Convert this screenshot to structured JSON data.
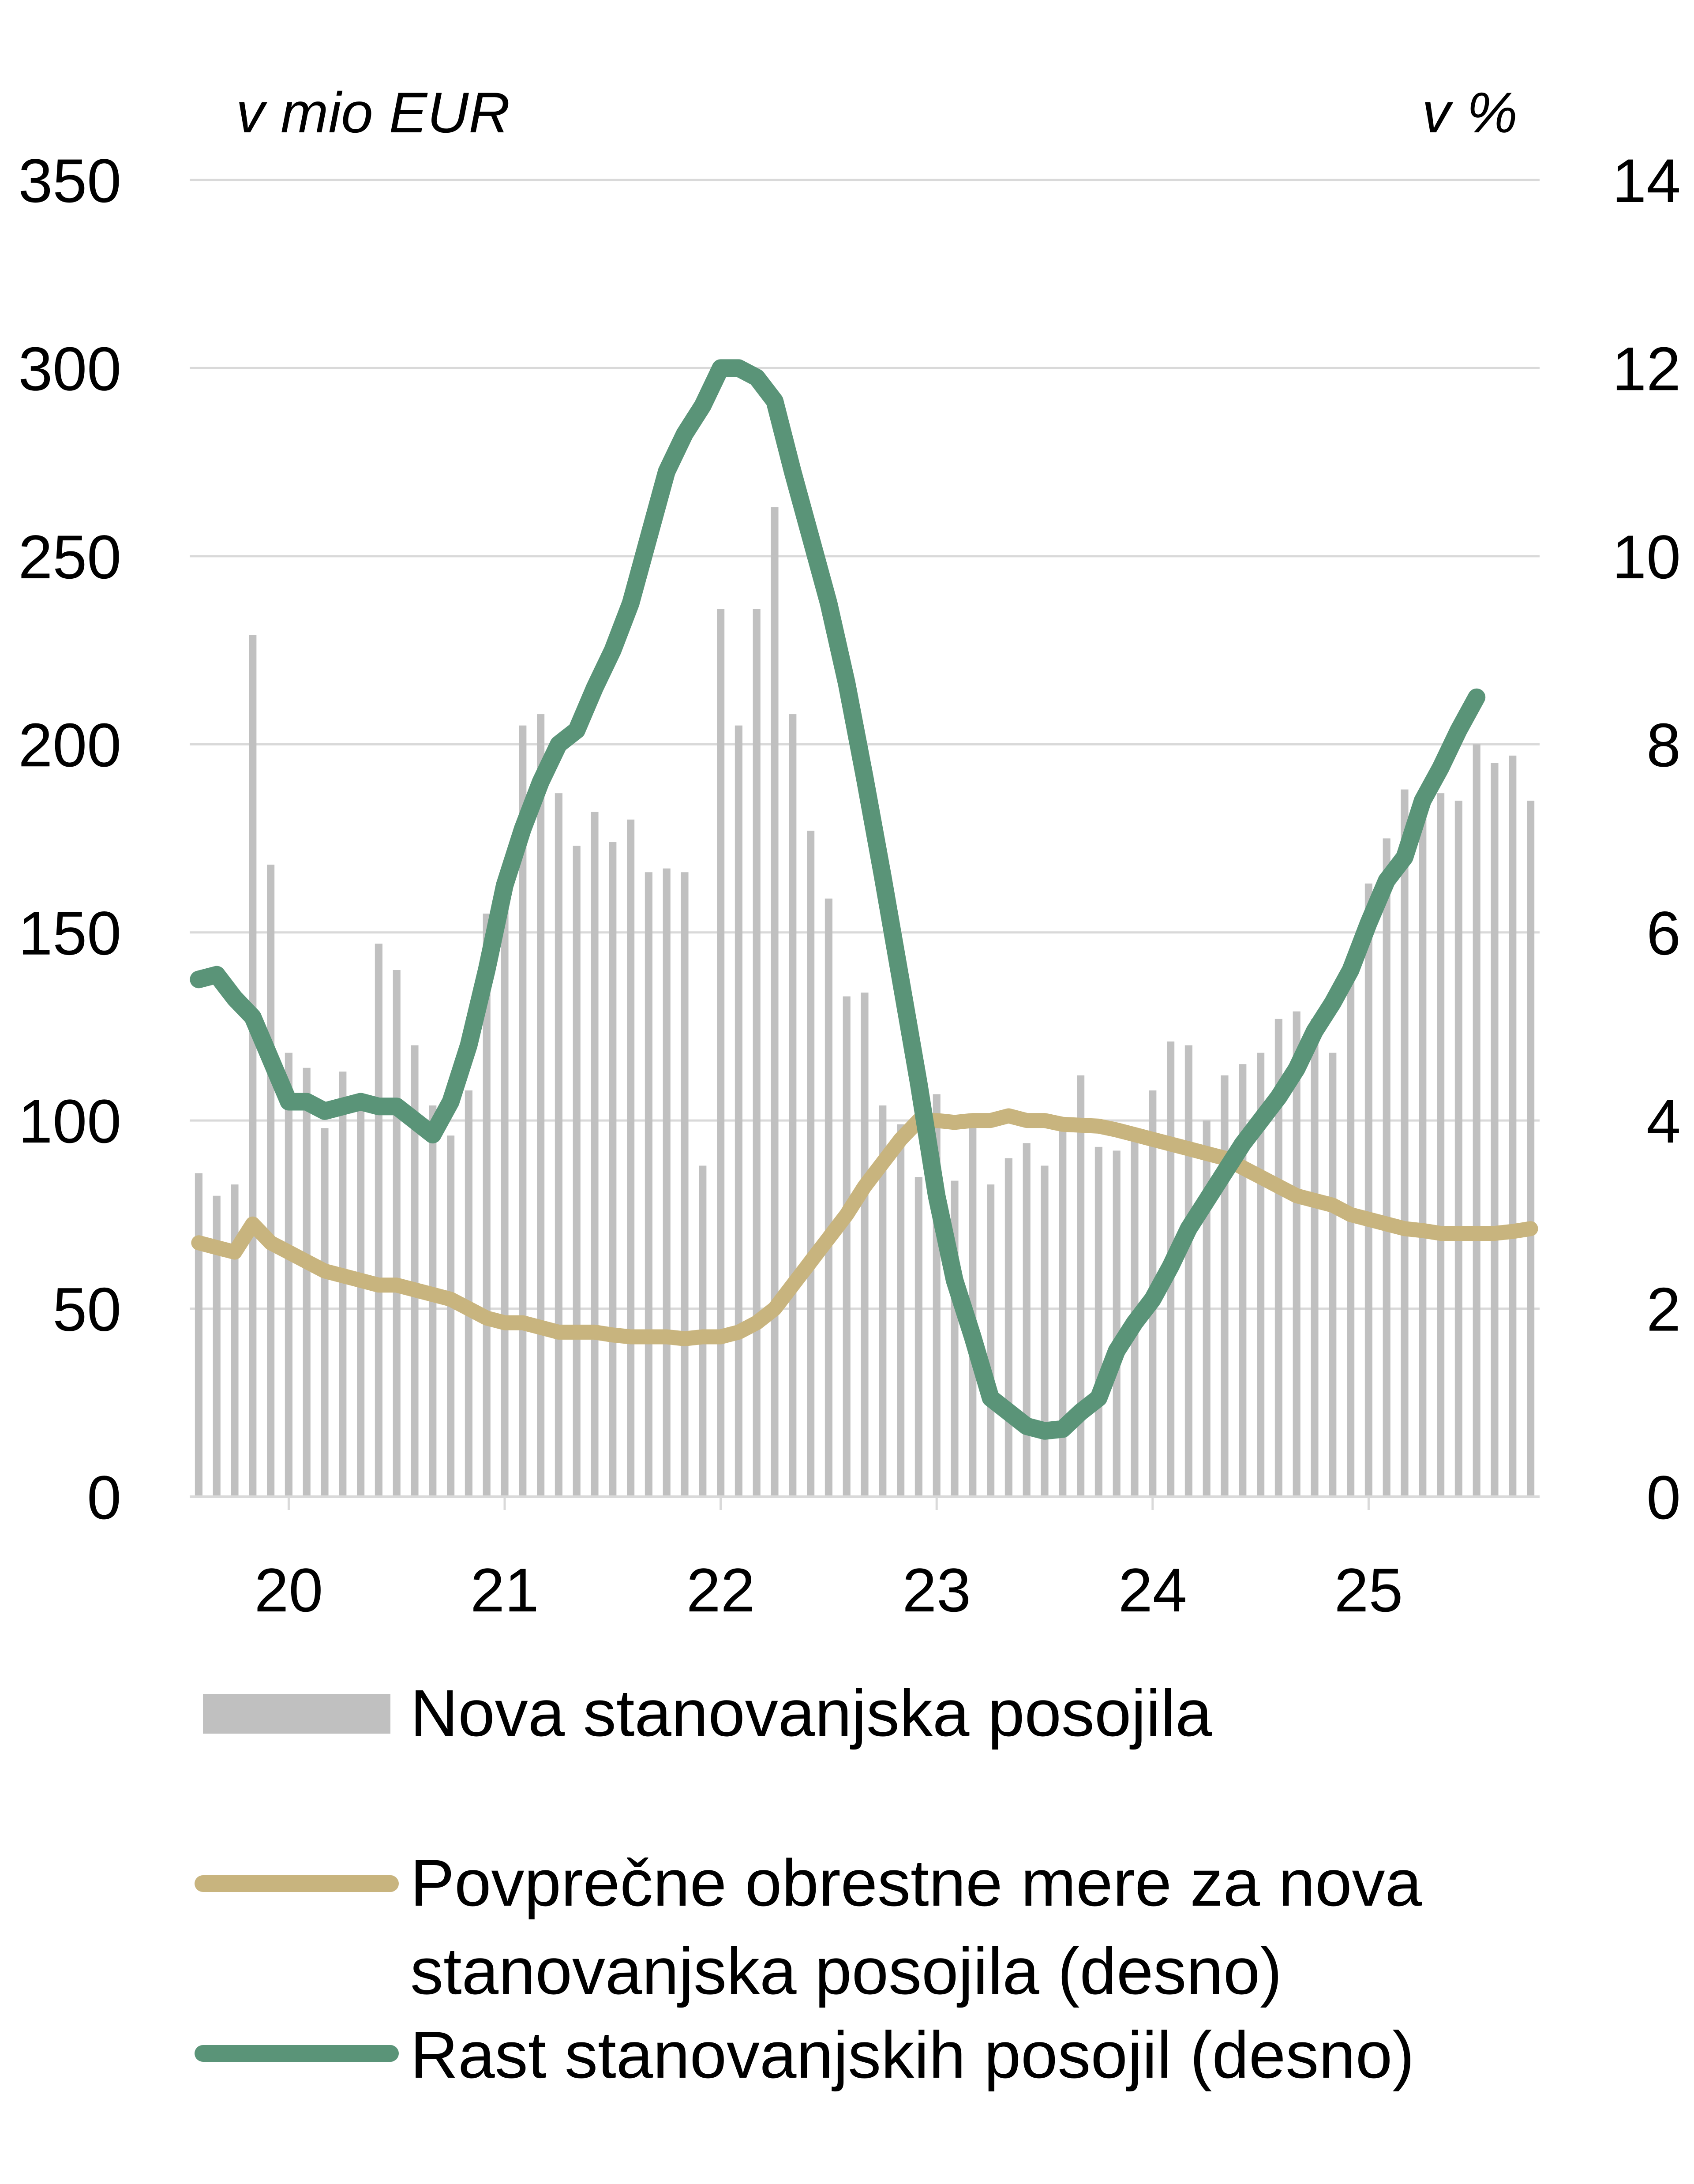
{
  "chart_data": {
    "type": "bar+line",
    "title": "",
    "left_axis": {
      "unit_label": "v mio EUR",
      "ylim": [
        0,
        350
      ],
      "ticks": [
        0,
        50,
        100,
        150,
        200,
        250,
        300,
        350
      ]
    },
    "right_axis": {
      "unit_label": "v %",
      "ylim": [
        0,
        14
      ],
      "ticks": [
        0,
        2,
        4,
        6,
        8,
        10,
        12,
        14
      ]
    },
    "x_axis": {
      "tick_labels": [
        "20",
        "21",
        "22",
        "23",
        "24",
        "25"
      ],
      "tick_index": [
        5,
        17,
        29,
        41,
        53,
        65
      ]
    },
    "grid": "horizontal",
    "colors": {
      "bars": "#c0c0c0",
      "rate_line": "#c8b47e",
      "growth_line": "#5a9478",
      "gridline": "#d9d9d9"
    },
    "series": [
      {
        "name": "Nova stanovanjska posojila",
        "type": "bar",
        "axis": "left",
        "values": [
          86,
          80,
          83,
          229,
          168,
          118,
          114,
          98,
          113,
          106,
          147,
          140,
          120,
          104,
          96,
          108,
          155,
          160,
          205,
          208,
          187,
          173,
          182,
          174,
          180,
          166,
          167,
          166,
          88,
          236,
          205,
          236,
          263,
          208,
          177,
          159,
          133,
          134,
          104,
          99,
          85,
          107,
          84,
          100,
          83,
          90,
          94,
          88,
          100,
          112,
          93,
          92,
          98,
          108,
          121,
          120,
          100,
          112,
          115,
          118,
          127,
          129,
          127,
          118,
          140,
          163,
          175,
          188,
          184,
          187,
          185,
          200,
          195,
          197,
          185
        ]
      },
      {
        "name": "Povprečne obrestne mere za nova stanovanjska posojila (desno)",
        "type": "line",
        "axis": "right",
        "values": [
          2.7,
          2.65,
          2.6,
          2.9,
          2.7,
          2.6,
          2.5,
          2.4,
          2.35,
          2.3,
          2.25,
          2.25,
          2.2,
          2.15,
          2.1,
          2.0,
          1.9,
          1.85,
          1.85,
          1.8,
          1.75,
          1.75,
          1.75,
          1.72,
          1.7,
          1.7,
          1.7,
          1.68,
          1.7,
          1.7,
          1.75,
          1.85,
          2.0,
          2.25,
          2.5,
          2.75,
          3.0,
          3.3,
          3.55,
          3.8,
          4.0,
          4.0,
          3.98,
          4.0,
          4.0,
          4.05,
          4.0,
          4.0,
          3.96,
          3.95,
          3.94,
          3.9,
          3.85,
          3.8,
          3.75,
          3.7,
          3.65,
          3.6,
          3.5,
          3.4,
          3.3,
          3.2,
          3.15,
          3.1,
          3.0,
          2.95,
          2.9,
          2.85,
          2.83,
          2.8,
          2.8,
          2.8,
          2.8,
          2.82,
          2.85
        ]
      },
      {
        "name": "Rast stanovanjskih posojil (desno)",
        "type": "line",
        "axis": "right",
        "values": [
          5.5,
          5.55,
          5.3,
          5.1,
          4.65,
          4.2,
          4.2,
          4.1,
          4.15,
          4.2,
          4.15,
          4.15,
          4.0,
          3.85,
          4.2,
          4.8,
          5.6,
          6.5,
          7.1,
          7.6,
          8.0,
          8.15,
          8.6,
          9.0,
          9.5,
          10.2,
          10.9,
          11.3,
          11.6,
          12.0,
          12.0,
          11.9,
          11.65,
          10.9,
          10.2,
          9.5,
          8.65,
          7.65,
          6.6,
          5.5,
          4.4,
          3.2,
          2.3,
          1.7,
          1.05,
          0.9,
          0.75,
          0.7,
          0.72,
          0.9,
          1.05,
          1.55,
          1.85,
          2.1,
          2.45,
          2.85,
          3.15,
          3.45,
          3.75,
          4.0,
          4.25,
          4.55,
          4.95,
          5.25,
          5.6,
          6.1,
          6.55,
          6.8,
          7.4,
          7.75,
          8.15,
          8.5
        ]
      }
    ],
    "legend_placement": "bottom"
  }
}
